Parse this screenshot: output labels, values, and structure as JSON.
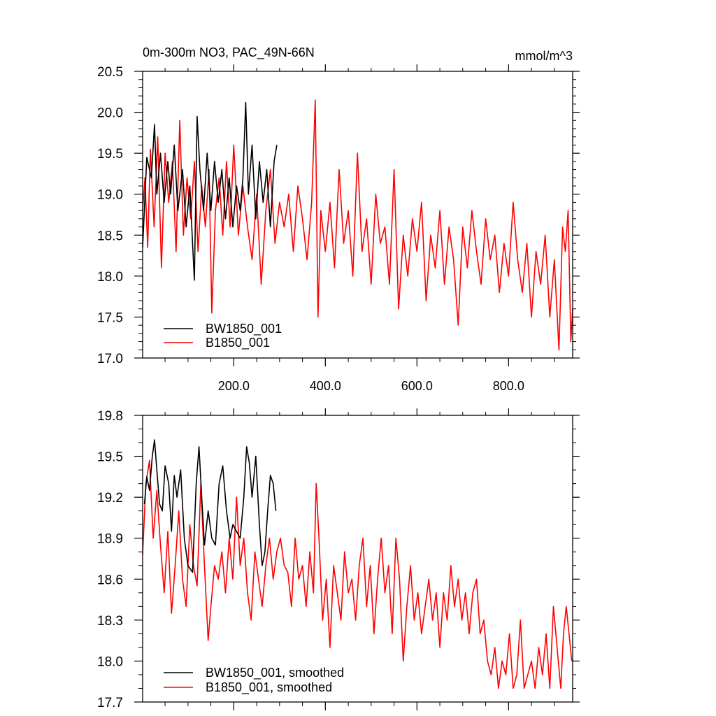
{
  "chart_data": [
    {
      "type": "line",
      "title": "0m-300m NO3, PAC_49N-66N",
      "units": "mmol/m^3",
      "xlim": [
        1,
        940
      ],
      "ylim": [
        17.0,
        20.5
      ],
      "x_ticks": [
        200,
        400,
        600,
        800
      ],
      "x_tick_labels": [
        "200.0",
        "400.0",
        "600.0",
        "800.0"
      ],
      "y_ticks": [
        17.0,
        17.5,
        18.0,
        18.5,
        19.0,
        19.5,
        20.0,
        20.5
      ],
      "y_tick_labels": [
        "17.0",
        "17.5",
        "18.0",
        "18.5",
        "19.0",
        "19.5",
        "20.0",
        "20.5"
      ],
      "legend_position": "bottom-left",
      "series": [
        {
          "name": "BW1850_001",
          "color": "#000000",
          "x": [
            1,
            10,
            20,
            27,
            32,
            40,
            48,
            56,
            62,
            70,
            78,
            88,
            96,
            104,
            110,
            114,
            120,
            126,
            134,
            142,
            150,
            158,
            166,
            174,
            182,
            190,
            198,
            206,
            214,
            220,
            226,
            232,
            240,
            248,
            256,
            264,
            272,
            280,
            288,
            294
          ],
          "y": [
            18.35,
            19.45,
            19.2,
            19.85,
            19.0,
            19.5,
            18.9,
            19.4,
            19.0,
            19.6,
            18.8,
            19.3,
            18.6,
            19.1,
            18.4,
            17.95,
            19.95,
            19.3,
            18.8,
            19.5,
            18.8,
            19.4,
            18.9,
            19.3,
            18.7,
            19.2,
            18.6,
            19.1,
            18.8,
            19.2,
            20.12,
            19.0,
            19.6,
            18.7,
            19.4,
            18.9,
            19.3,
            18.6,
            19.4,
            19.6
          ]
        },
        {
          "name": "B1850_001",
          "color": "#ff0000",
          "x": [
            1,
            6,
            12,
            18,
            26,
            34,
            42,
            50,
            58,
            66,
            74,
            82,
            90,
            98,
            106,
            114,
            122,
            130,
            138,
            146,
            152,
            160,
            168,
            176,
            184,
            192,
            200,
            210,
            220,
            230,
            240,
            250,
            260,
            270,
            280,
            290,
            300,
            310,
            320,
            330,
            340,
            350,
            360,
            370,
            378,
            384,
            390,
            400,
            410,
            420,
            430,
            440,
            450,
            460,
            470,
            480,
            490,
            500,
            510,
            520,
            530,
            540,
            550,
            560,
            570,
            580,
            590,
            600,
            610,
            620,
            630,
            640,
            650,
            660,
            670,
            680,
            690,
            700,
            710,
            720,
            730,
            740,
            750,
            760,
            770,
            780,
            790,
            800,
            810,
            820,
            830,
            840,
            850,
            860,
            870,
            880,
            890,
            900,
            910,
            918,
            924,
            930,
            936,
            940
          ],
          "y": [
            18.8,
            19.2,
            18.35,
            19.55,
            18.6,
            19.7,
            18.1,
            19.5,
            18.9,
            19.4,
            18.3,
            19.9,
            18.5,
            19.2,
            18.7,
            19.4,
            18.3,
            19.1,
            18.6,
            19.3,
            17.55,
            18.8,
            19.2,
            18.5,
            19.4,
            18.6,
            19.6,
            18.5,
            19.1,
            18.6,
            18.2,
            19.0,
            17.9,
            18.8,
            19.3,
            18.4,
            18.9,
            18.6,
            19.0,
            18.3,
            19.1,
            18.7,
            18.2,
            18.9,
            20.15,
            17.5,
            18.8,
            18.3,
            18.9,
            18.1,
            19.3,
            18.4,
            18.8,
            18.0,
            19.5,
            18.3,
            18.7,
            17.9,
            19.0,
            18.4,
            18.6,
            17.9,
            19.3,
            17.6,
            18.5,
            18.0,
            18.7,
            18.3,
            18.9,
            17.7,
            18.5,
            18.1,
            18.8,
            17.9,
            18.6,
            18.2,
            17.4,
            18.6,
            18.1,
            18.8,
            18.3,
            17.9,
            18.7,
            18.2,
            18.5,
            17.8,
            18.4,
            18.0,
            18.9,
            18.2,
            17.8,
            18.4,
            17.5,
            18.3,
            17.9,
            18.5,
            17.5,
            18.2,
            17.1,
            18.6,
            18.3,
            18.8,
            17.2,
            17.6
          ]
        }
      ]
    },
    {
      "type": "line",
      "xlim": [
        1,
        940
      ],
      "ylim": [
        17.7,
        19.8
      ],
      "y_ticks": [
        17.7,
        18.0,
        18.3,
        18.6,
        18.9,
        19.2,
        19.5,
        19.8
      ],
      "y_tick_labels": [
        "17.7",
        "18.0",
        "18.3",
        "18.6",
        "18.9",
        "19.2",
        "19.5",
        "19.8"
      ],
      "legend_position": "bottom-left",
      "series": [
        {
          "name": "BW1850_001, smoothed",
          "color": "#000000",
          "x": [
            5,
            10,
            16,
            22,
            27,
            32,
            38,
            44,
            50,
            58,
            64,
            70,
            76,
            84,
            92,
            100,
            110,
            118,
            124,
            130,
            136,
            144,
            152,
            160,
            168,
            176,
            184,
            192,
            198,
            206,
            214,
            222,
            228,
            234,
            240,
            248,
            256,
            262,
            268,
            274,
            280,
            286,
            292
          ],
          "y": [
            19.15,
            19.35,
            19.25,
            19.5,
            19.62,
            19.4,
            19.15,
            19.1,
            19.43,
            19.3,
            18.95,
            19.36,
            19.2,
            19.4,
            18.9,
            18.7,
            18.65,
            19.3,
            19.57,
            19.2,
            18.85,
            19.1,
            18.9,
            18.85,
            19.3,
            19.43,
            19.1,
            18.9,
            19.0,
            18.95,
            18.9,
            19.2,
            19.57,
            19.45,
            19.2,
            19.5,
            19.0,
            18.7,
            18.8,
            19.1,
            19.36,
            19.3,
            19.1
          ]
        },
        {
          "name": "B1850_001, smoothed",
          "color": "#ff0000",
          "x": [
            1,
            8,
            16,
            24,
            32,
            40,
            48,
            56,
            64,
            72,
            80,
            88,
            96,
            104,
            112,
            120,
            128,
            136,
            144,
            150,
            158,
            166,
            174,
            182,
            190,
            198,
            206,
            214,
            222,
            230,
            238,
            246,
            254,
            262,
            270,
            278,
            286,
            294,
            302,
            310,
            318,
            326,
            334,
            342,
            350,
            358,
            366,
            374,
            380,
            386,
            394,
            402,
            410,
            418,
            426,
            434,
            442,
            450,
            458,
            466,
            474,
            482,
            490,
            498,
            506,
            514,
            522,
            530,
            538,
            546,
            554,
            562,
            570,
            578,
            586,
            594,
            602,
            610,
            618,
            626,
            634,
            642,
            650,
            658,
            666,
            674,
            682,
            690,
            698,
            706,
            714,
            722,
            730,
            738,
            746,
            754,
            762,
            770,
            778,
            786,
            794,
            802,
            810,
            818,
            826,
            834,
            842,
            850,
            858,
            866,
            874,
            882,
            890,
            898,
            906,
            914,
            920,
            926,
            932,
            938
          ],
          "y": [
            18.78,
            19.3,
            19.47,
            18.9,
            19.25,
            18.85,
            18.5,
            18.95,
            18.35,
            18.7,
            19.1,
            18.6,
            18.4,
            19.0,
            18.7,
            18.55,
            19.3,
            18.7,
            18.15,
            18.4,
            18.7,
            18.6,
            18.8,
            18.5,
            18.9,
            18.6,
            19.2,
            18.7,
            18.9,
            18.5,
            18.3,
            18.8,
            18.6,
            18.4,
            18.7,
            18.9,
            18.6,
            18.8,
            18.9,
            18.7,
            18.65,
            18.4,
            18.9,
            18.6,
            18.7,
            18.4,
            18.8,
            18.5,
            19.3,
            18.9,
            18.3,
            18.6,
            18.1,
            18.7,
            18.5,
            18.3,
            18.8,
            18.5,
            18.6,
            18.3,
            18.7,
            18.9,
            18.4,
            18.7,
            18.2,
            18.6,
            18.9,
            18.5,
            18.7,
            18.2,
            18.9,
            18.6,
            18.0,
            18.4,
            18.7,
            18.3,
            18.5,
            18.2,
            18.4,
            18.6,
            18.3,
            18.5,
            18.1,
            18.5,
            18.3,
            18.7,
            18.4,
            18.6,
            18.3,
            18.5,
            18.2,
            18.5,
            18.6,
            18.2,
            18.3,
            18.0,
            17.9,
            18.1,
            17.8,
            18.0,
            17.9,
            18.2,
            17.8,
            17.9,
            18.3,
            17.8,
            17.9,
            18.0,
            17.8,
            18.1,
            17.9,
            18.2,
            17.8,
            18.4,
            18.1,
            17.8,
            18.2,
            18.4,
            18.2,
            18.0
          ]
        }
      ]
    }
  ]
}
